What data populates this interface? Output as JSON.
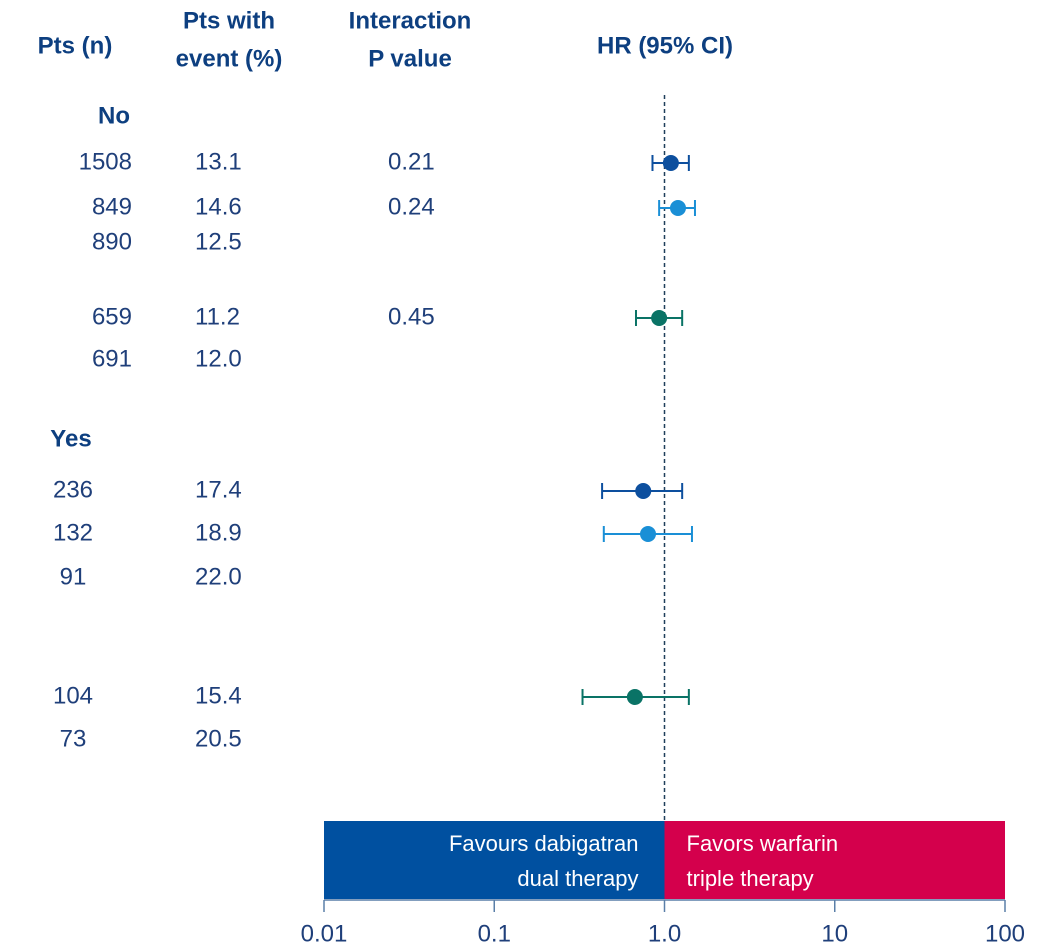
{
  "chart_data": {
    "type": "forest",
    "headers": {
      "n": "Pts (n)",
      "pct": [
        "Pts with",
        "event (%)"
      ],
      "p": [
        "Interaction",
        "P value"
      ],
      "hr": "HR (95% CI)"
    },
    "groups": [
      {
        "label": "No",
        "rows": [
          {
            "n": 1508,
            "pct": "13.1",
            "p": "0.21",
            "hr": 1.09,
            "lo": 0.85,
            "hi": 1.39,
            "color": "#0d4f9e"
          },
          {
            "n": 849,
            "pct": "14.6",
            "p": "0.24",
            "hr": 1.2,
            "lo": 0.93,
            "hi": 1.51,
            "color": "#1a8fd6"
          },
          {
            "n": 890,
            "pct": "12.5"
          },
          {
            "n": 659,
            "pct": "11.2",
            "p": "0.45",
            "hr": 0.93,
            "lo": 0.68,
            "hi": 1.27,
            "color": "#0a7366"
          },
          {
            "n": 691,
            "pct": "12.0"
          }
        ]
      },
      {
        "label": "Yes",
        "rows": [
          {
            "n": 236,
            "pct": "17.4",
            "hr": 0.75,
            "lo": 0.43,
            "hi": 1.27,
            "color": "#0d4f9e"
          },
          {
            "n": 132,
            "pct": "18.9",
            "hr": 0.8,
            "lo": 0.44,
            "hi": 1.45,
            "color": "#1a8fd6"
          },
          {
            "n": 91,
            "pct": "22.0"
          },
          {
            "n": 104,
            "pct": "15.4",
            "hr": 0.67,
            "lo": 0.33,
            "hi": 1.39,
            "color": "#0a7366"
          },
          {
            "n": 73,
            "pct": "20.5"
          }
        ]
      }
    ],
    "xscale": "log",
    "xlim": [
      0.01,
      100
    ],
    "xticks": [
      0.01,
      0.1,
      {
        "value": 1,
        "label": "1.0"
      },
      10,
      100
    ],
    "reference": 1,
    "favours_left": {
      "lines": [
        "Favours dabigatran",
        "dual therapy"
      ],
      "color": "#0050a0"
    },
    "favours_right": {
      "lines": [
        "Favors warfarin",
        "triple therapy"
      ],
      "color": "#d4004c"
    }
  }
}
